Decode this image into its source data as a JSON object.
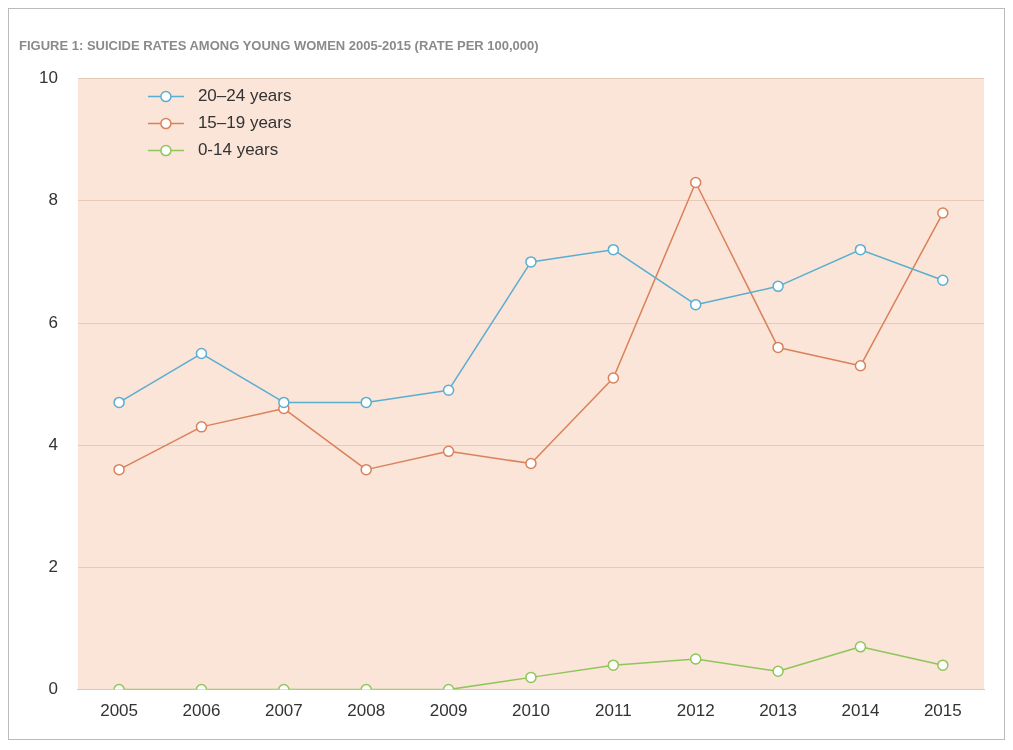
{
  "chart_data": {
    "type": "line",
    "title": "FIGURE 1: SUICIDE RATES AMONG YOUNG WOMEN 2005-2015 (RATE PER 100,000)",
    "categories": [
      "2005",
      "2006",
      "2007",
      "2008",
      "2009",
      "2010",
      "2011",
      "2012",
      "2013",
      "2014",
      "2015"
    ],
    "series": [
      {
        "name": "20–24 years",
        "color": "#5aaed0",
        "values": [
          4.7,
          5.5,
          4.7,
          4.7,
          4.9,
          7.0,
          7.2,
          6.3,
          6.6,
          7.2,
          6.7
        ]
      },
      {
        "name": "15–19 years",
        "color": "#d9825a",
        "values": [
          3.6,
          4.3,
          4.6,
          3.6,
          3.9,
          3.7,
          5.1,
          8.3,
          5.6,
          5.3,
          7.8
        ]
      },
      {
        "name": "0-14 years",
        "color": "#8ec65a",
        "values": [
          0,
          0,
          0,
          0,
          0,
          0.2,
          0.4,
          0.5,
          0.3,
          0.7,
          0.4
        ]
      }
    ],
    "ylim": [
      0,
      10
    ],
    "yticks": [
      0,
      2,
      4,
      6,
      8,
      10
    ],
    "grid": "y",
    "legend": "top left",
    "marker": "circle",
    "line_style": "solid"
  }
}
